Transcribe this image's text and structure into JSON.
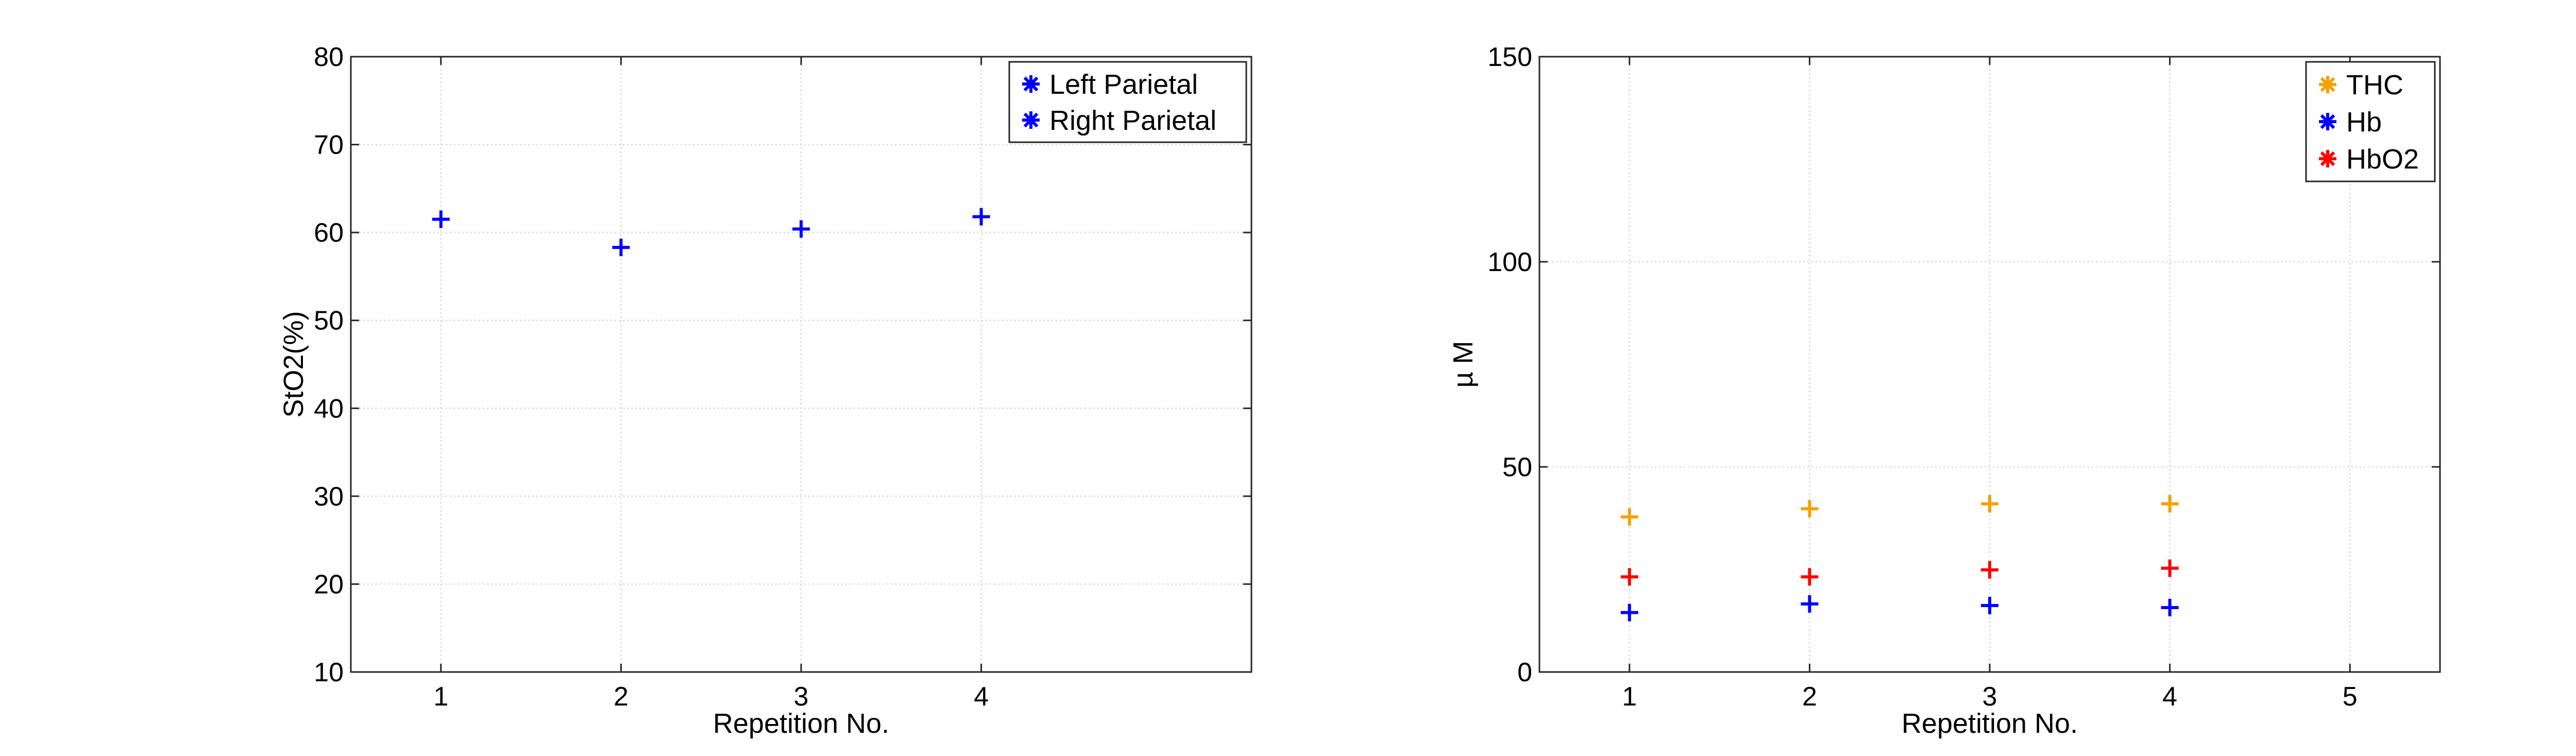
{
  "chart_data": [
    {
      "type": "scatter",
      "x": [
        1,
        2,
        3,
        4
      ],
      "xlim": [
        0.5,
        5.5
      ],
      "xticks": [
        "1",
        "2",
        "3",
        "4"
      ],
      "ylim": [
        10,
        80
      ],
      "yticks": [
        "10",
        "20",
        "30",
        "40",
        "50",
        "60",
        "70",
        "80"
      ],
      "xlabel": "Repetition No.",
      "ylabel": "StO2(%)",
      "grid": true,
      "legend_position": "top-right",
      "series": [
        {
          "name": "Left Parietal",
          "marker": "asterisk",
          "color": "#0000ff",
          "values": []
        },
        {
          "name": "Right Parietal",
          "marker": "plus",
          "color": "#0000ff",
          "values": [
            61.5,
            58.3,
            60.4,
            61.8
          ]
        }
      ]
    },
    {
      "type": "scatter",
      "x": [
        1,
        2,
        3,
        4
      ],
      "xlim": [
        0.5,
        5.5
      ],
      "xticks": [
        "1",
        "2",
        "3",
        "4",
        "5"
      ],
      "ylim": [
        0,
        150
      ],
      "yticks": [
        "0",
        "50",
        "100",
        "150"
      ],
      "xlabel": "Repetition No.",
      "ylabel": "µ M",
      "grid": true,
      "legend_position": "top-right",
      "series": [
        {
          "name": "THC",
          "marker": "plus",
          "color": "#f5a000",
          "values": [
            37.8,
            39.8,
            41.0,
            41.0
          ]
        },
        {
          "name": "Hb",
          "marker": "plus",
          "color": "#0000ff",
          "values": [
            14.5,
            16.6,
            16.2,
            15.7
          ]
        },
        {
          "name": "HbO2",
          "marker": "plus",
          "color": "#ff0000",
          "values": [
            23.2,
            23.2,
            24.9,
            25.3
          ]
        }
      ]
    }
  ]
}
